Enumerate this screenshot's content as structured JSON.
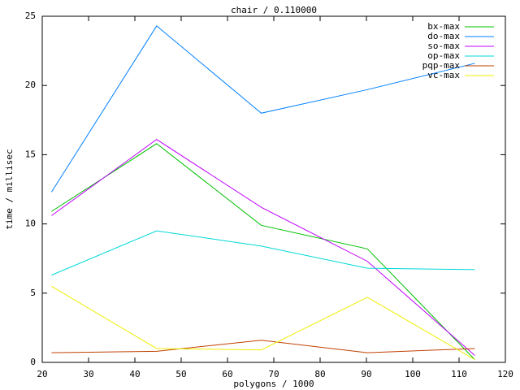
{
  "chart_data": {
    "type": "line",
    "title": "chair / 0.110000",
    "x_label": "polygons / 1000",
    "y_label": "time / millisec",
    "x": [
      22,
      44.7,
      67.3,
      90.2,
      113.4
    ],
    "series": [
      {
        "name": "bx-max",
        "color": "#00c000",
        "values": [
          10.9,
          15.8,
          9.9,
          8.2,
          0.2
        ]
      },
      {
        "name": "do-max",
        "color": "#0080ff",
        "values": [
          12.3,
          24.3,
          18.0,
          19.7,
          21.6
        ]
      },
      {
        "name": "so-max",
        "color": "#c000ff",
        "values": [
          10.6,
          16.1,
          11.2,
          7.3,
          0.5
        ]
      },
      {
        "name": "op-max",
        "color": "#00d8d8",
        "values": [
          6.3,
          9.5,
          8.4,
          6.8,
          6.7
        ]
      },
      {
        "name": "pqp-max",
        "color": "#c04000",
        "values": [
          0.7,
          0.8,
          1.6,
          0.7,
          1.0
        ]
      },
      {
        "name": "vc-max",
        "color": "#eeee00",
        "values": [
          5.5,
          1.0,
          0.9,
          4.7,
          0.2
        ]
      }
    ],
    "xlim": [
      20,
      120
    ],
    "xticks": [
      20,
      30,
      40,
      50,
      60,
      70,
      80,
      90,
      100,
      110,
      120
    ],
    "ylim": [
      0,
      25
    ],
    "yticks": [
      0,
      5,
      10,
      15,
      20,
      25
    ],
    "grid": false,
    "legend": "top-right"
  }
}
